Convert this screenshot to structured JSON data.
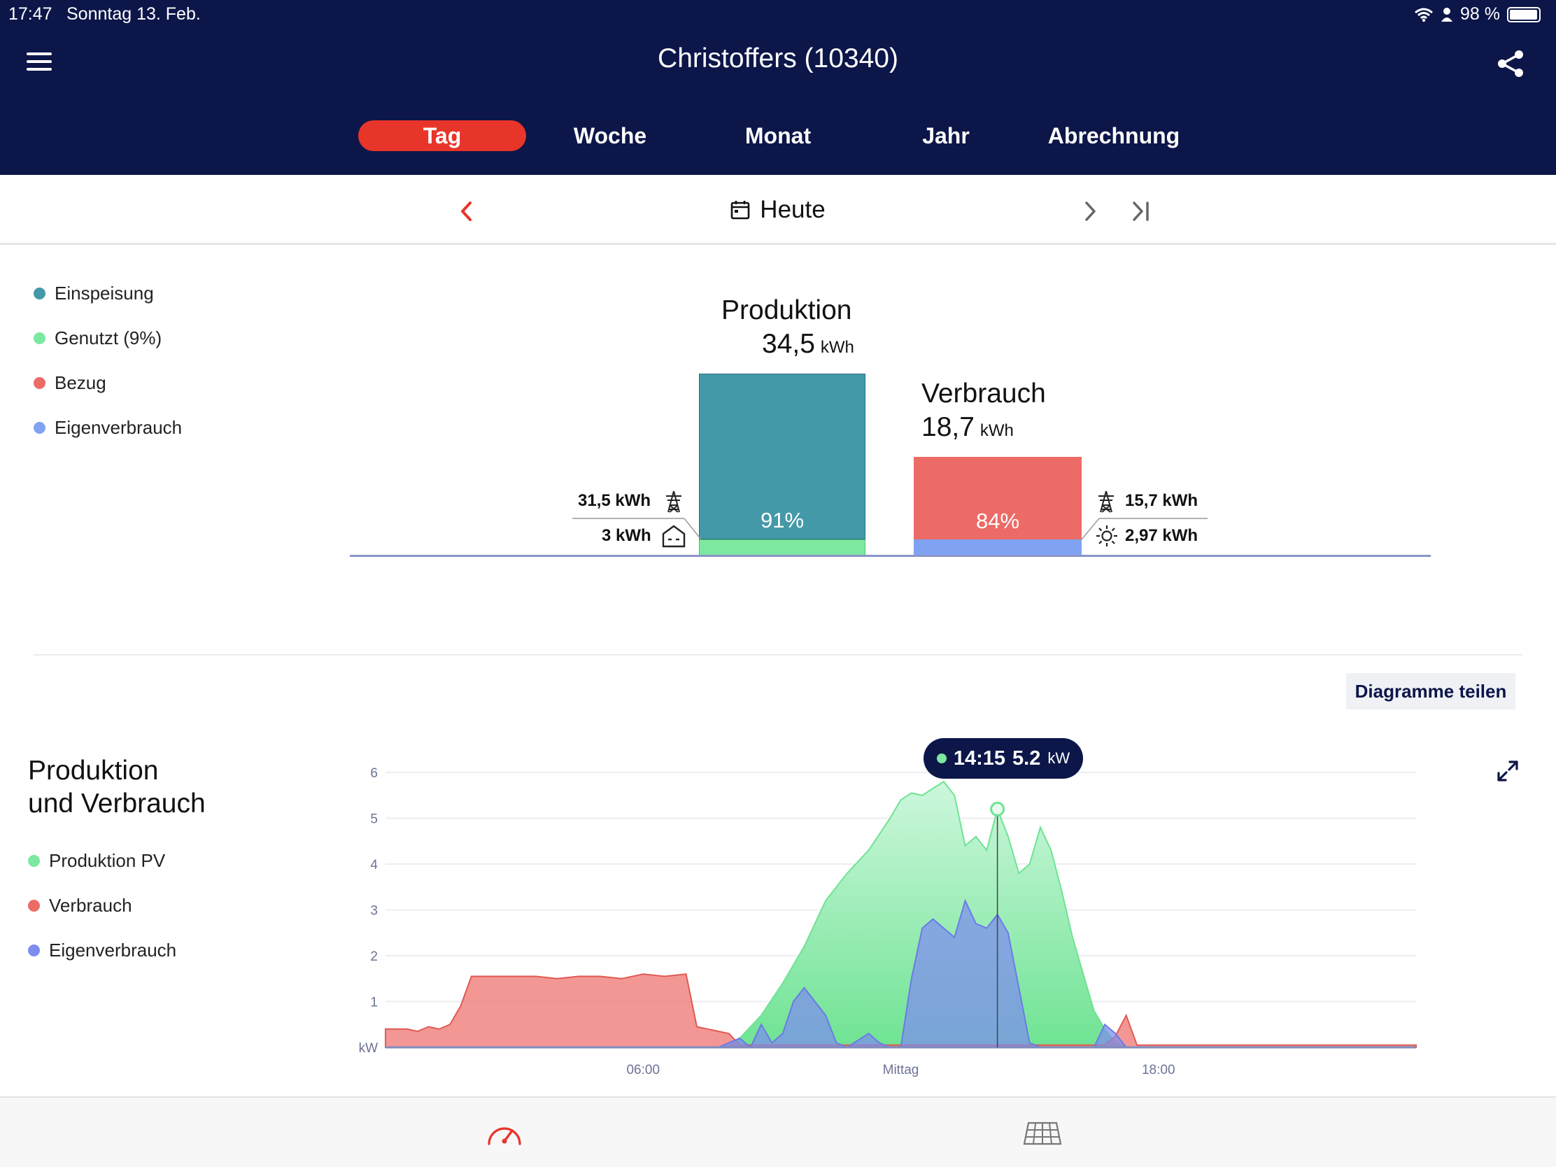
{
  "status_bar": {
    "time": "17:47",
    "date": "Sonntag 13. Feb.",
    "battery": "98 %"
  },
  "header": {
    "title": "Christoffers (10340)"
  },
  "tabs": [
    {
      "label": "Tag",
      "active": true
    },
    {
      "label": "Woche",
      "active": false
    },
    {
      "label": "Monat",
      "active": false
    },
    {
      "label": "Jahr",
      "active": false
    },
    {
      "label": "Abrechnung",
      "active": false
    }
  ],
  "date_nav": {
    "label": "Heute"
  },
  "summary_legend": [
    {
      "label": "Einspeisung",
      "color": "#4499a8"
    },
    {
      "label": "Genutzt (9%)",
      "color": "#7ce8a0"
    },
    {
      "label": "Bezug",
      "color": "#ec6b66"
    },
    {
      "label": "Eigenverbrauch",
      "color": "#7fa2f2"
    }
  ],
  "production": {
    "title": "Produktion",
    "value": "34,5",
    "unit": "kWh",
    "percent": "91%",
    "grid_feed": "31,5 kWh",
    "self_used": "3 kWh",
    "feed_fraction": 0.91,
    "used_fraction": 0.09
  },
  "consumption": {
    "title": "Verbrauch",
    "value": "18,7",
    "unit": "kWh",
    "percent": "84%",
    "grid_draw": "15,7 kWh",
    "solar": "2,97 kWh",
    "draw_fraction": 0.84,
    "self_fraction": 0.16
  },
  "share_charts_label": "Diagramme teilen",
  "chart_section": {
    "title_line1": "Produktion",
    "title_line2": "und Verbrauch",
    "legend": [
      {
        "label": "Produktion PV",
        "color": "#7ce8a0"
      },
      {
        "label": "Verbrauch",
        "color": "#ec6b66"
      },
      {
        "label": "Eigenverbrauch",
        "color": "#7d8cf0"
      }
    ]
  },
  "tooltip": {
    "time": "14:15",
    "value": "5.2",
    "unit": "kW"
  },
  "chart_data": {
    "type": "area",
    "ylabel": "kW",
    "ylim": [
      0,
      6
    ],
    "yticks": [
      "1",
      "2",
      "3",
      "4",
      "5",
      "6"
    ],
    "x_tick_labels": [
      {
        "hour": 6,
        "label": "06:00"
      },
      {
        "hour": 12,
        "label": "Mittag"
      },
      {
        "hour": 18,
        "label": "18:00"
      }
    ],
    "x_range_hours": [
      0,
      24
    ],
    "series": [
      {
        "name": "Produktion PV",
        "color": "#7ce8a0",
        "points": [
          [
            0,
            0
          ],
          [
            7.75,
            0
          ],
          [
            8.25,
            0.2
          ],
          [
            8.75,
            0.7
          ],
          [
            9.25,
            1.4
          ],
          [
            9.75,
            2.2
          ],
          [
            10.25,
            3.2
          ],
          [
            10.75,
            3.8
          ],
          [
            11.25,
            4.3
          ],
          [
            11.75,
            5.0
          ],
          [
            12,
            5.4
          ],
          [
            12.25,
            5.55
          ],
          [
            12.5,
            5.5
          ],
          [
            12.75,
            5.65
          ],
          [
            13,
            5.8
          ],
          [
            13.25,
            5.5
          ],
          [
            13.5,
            4.4
          ],
          [
            13.75,
            4.6
          ],
          [
            14,
            4.3
          ],
          [
            14.25,
            5.2
          ],
          [
            14.5,
            4.6
          ],
          [
            14.75,
            3.8
          ],
          [
            15,
            4.0
          ],
          [
            15.25,
            4.8
          ],
          [
            15.5,
            4.3
          ],
          [
            15.75,
            3.4
          ],
          [
            16,
            2.4
          ],
          [
            16.25,
            1.6
          ],
          [
            16.5,
            0.8
          ],
          [
            16.75,
            0.4
          ],
          [
            17,
            0.1
          ],
          [
            17.25,
            0
          ],
          [
            24,
            0
          ]
        ]
      },
      {
        "name": "Verbrauch",
        "color": "#ec6b66",
        "points": [
          [
            0,
            0.4
          ],
          [
            0.25,
            0.4
          ],
          [
            0.5,
            0.4
          ],
          [
            0.75,
            0.35
          ],
          [
            1,
            0.45
          ],
          [
            1.25,
            0.4
          ],
          [
            1.5,
            0.5
          ],
          [
            1.75,
            0.9
          ],
          [
            2,
            1.55
          ],
          [
            2.5,
            1.55
          ],
          [
            3,
            1.55
          ],
          [
            3.5,
            1.55
          ],
          [
            4,
            1.5
          ],
          [
            4.5,
            1.55
          ],
          [
            5,
            1.55
          ],
          [
            5.5,
            1.5
          ],
          [
            6,
            1.6
          ],
          [
            6.5,
            1.55
          ],
          [
            7,
            1.6
          ],
          [
            7.25,
            0.45
          ],
          [
            7.5,
            0.4
          ],
          [
            8,
            0.3
          ],
          [
            8.25,
            0.05
          ],
          [
            16.75,
            0.05
          ],
          [
            17,
            0.25
          ],
          [
            17.25,
            0.7
          ],
          [
            17.5,
            0.05
          ],
          [
            24,
            0.05
          ]
        ]
      },
      {
        "name": "Eigenverbrauch",
        "color": "#7d8cf0",
        "points": [
          [
            0,
            0
          ],
          [
            7.75,
            0
          ],
          [
            8.25,
            0.2
          ],
          [
            8.5,
            0
          ],
          [
            8.75,
            0.5
          ],
          [
            9,
            0.1
          ],
          [
            9.25,
            0.3
          ],
          [
            9.5,
            1.0
          ],
          [
            9.75,
            1.3
          ],
          [
            10.25,
            0.7
          ],
          [
            10.5,
            0.1
          ],
          [
            10.75,
            0
          ],
          [
            11.25,
            0.3
          ],
          [
            11.5,
            0.1
          ],
          [
            11.75,
            0
          ],
          [
            12,
            0
          ],
          [
            12.25,
            1.5
          ],
          [
            12.5,
            2.6
          ],
          [
            12.75,
            2.8
          ],
          [
            13.25,
            2.4
          ],
          [
            13.5,
            3.2
          ],
          [
            13.75,
            2.7
          ],
          [
            14,
            2.6
          ],
          [
            14.25,
            2.9
          ],
          [
            14.5,
            2.5
          ],
          [
            14.75,
            1.3
          ],
          [
            15,
            0.1
          ],
          [
            15.25,
            0
          ],
          [
            16.5,
            0
          ],
          [
            16.75,
            0.5
          ],
          [
            17,
            0.3
          ],
          [
            17.25,
            0
          ],
          [
            24,
            0
          ]
        ]
      }
    ],
    "grid": true,
    "highlight": {
      "time": "14:15",
      "hour": 14.25,
      "value": 5.2
    }
  },
  "icons": [
    "menu-icon",
    "share-icon",
    "chevron-left-icon",
    "calendar-icon",
    "chevron-right-icon",
    "skip-end-icon",
    "power-pylon-icon",
    "house-icon",
    "sun-icon",
    "expand-icon",
    "gauge-icon",
    "solar-panel-icon"
  ]
}
